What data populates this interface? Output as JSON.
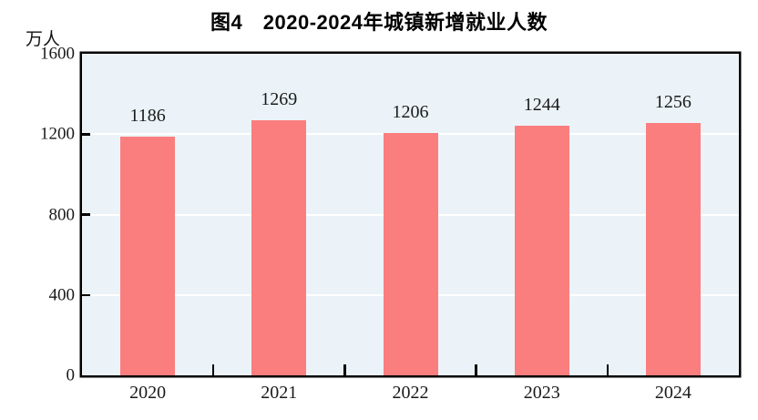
{
  "chart_data": {
    "type": "bar",
    "title": "图4　2020-2024年城镇新增就业人数",
    "ylabel": "万人",
    "categories": [
      "2020",
      "2021",
      "2022",
      "2023",
      "2024"
    ],
    "values": [
      1186,
      1269,
      1206,
      1244,
      1256
    ],
    "value_labels": [
      "1186",
      "1269",
      "1206",
      "1244",
      "1256"
    ],
    "ylim": [
      0,
      1600
    ],
    "yticks": [
      0,
      400,
      800,
      1200,
      1600
    ],
    "grid": "horizontal",
    "legend": "none",
    "colors": {
      "bar": "#FA7E7E",
      "plot_background": "#EBF3F8",
      "plot_border": "#000000",
      "gridline": "#FFFFFF",
      "text": "#1A1A1A"
    }
  }
}
